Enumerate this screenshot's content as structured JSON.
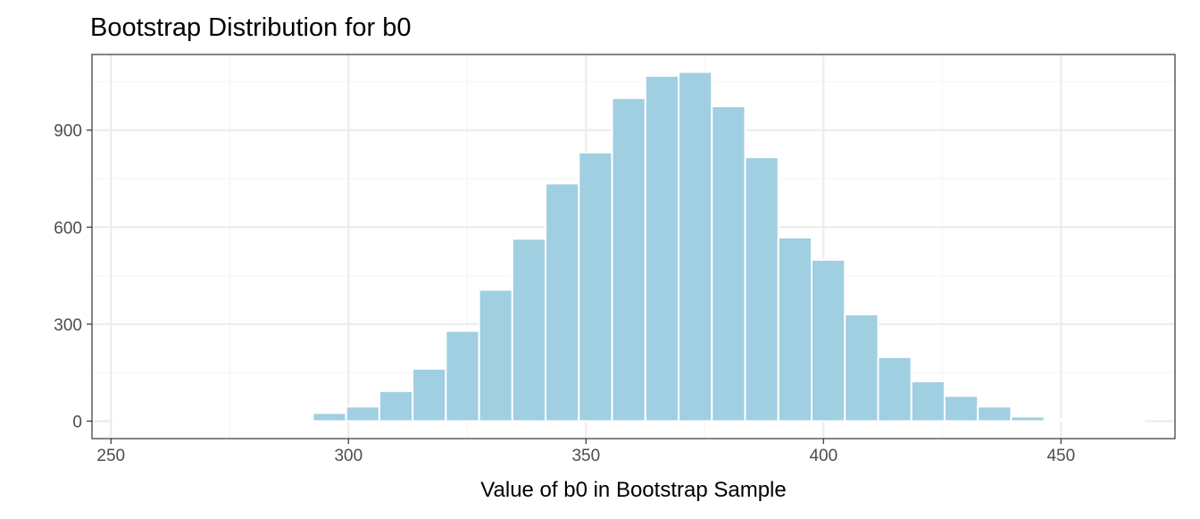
{
  "chart_data": {
    "type": "bar",
    "title": "Bootstrap Distribution for b0",
    "xlabel": "Value of b0 in Bootstrap Sample",
    "ylabel": "",
    "xlim": [
      246,
      474
    ],
    "ylim": [
      -54,
      1134
    ],
    "xticks": [
      250,
      300,
      350,
      400,
      450
    ],
    "yticks": [
      0,
      300,
      600,
      900
    ],
    "bin_width": 7,
    "bins": [
      {
        "start": 250.5,
        "end": 257.5,
        "count": 1
      },
      {
        "start": 257.5,
        "end": 264.5,
        "count": 0
      },
      {
        "start": 264.5,
        "end": 271.5,
        "count": 0
      },
      {
        "start": 271.5,
        "end": 278.5,
        "count": 0
      },
      {
        "start": 278.5,
        "end": 285.5,
        "count": 0
      },
      {
        "start": 285.5,
        "end": 292.5,
        "count": 3
      },
      {
        "start": 292.5,
        "end": 299.5,
        "count": 25
      },
      {
        "start": 299.5,
        "end": 306.5,
        "count": 45
      },
      {
        "start": 306.5,
        "end": 313.5,
        "count": 93
      },
      {
        "start": 313.5,
        "end": 320.5,
        "count": 162
      },
      {
        "start": 320.5,
        "end": 327.5,
        "count": 279
      },
      {
        "start": 327.5,
        "end": 334.5,
        "count": 406
      },
      {
        "start": 334.5,
        "end": 341.5,
        "count": 564
      },
      {
        "start": 341.5,
        "end": 348.5,
        "count": 735
      },
      {
        "start": 348.5,
        "end": 355.5,
        "count": 831
      },
      {
        "start": 355.5,
        "end": 362.5,
        "count": 999
      },
      {
        "start": 362.5,
        "end": 369.5,
        "count": 1068
      },
      {
        "start": 369.5,
        "end": 376.5,
        "count": 1080
      },
      {
        "start": 376.5,
        "end": 383.5,
        "count": 974
      },
      {
        "start": 383.5,
        "end": 390.5,
        "count": 816
      },
      {
        "start": 390.5,
        "end": 397.5,
        "count": 568
      },
      {
        "start": 397.5,
        "end": 404.5,
        "count": 499
      },
      {
        "start": 404.5,
        "end": 411.5,
        "count": 330
      },
      {
        "start": 411.5,
        "end": 418.5,
        "count": 198
      },
      {
        "start": 418.5,
        "end": 425.5,
        "count": 123
      },
      {
        "start": 425.5,
        "end": 432.5,
        "count": 78
      },
      {
        "start": 432.5,
        "end": 439.5,
        "count": 45
      },
      {
        "start": 439.5,
        "end": 446.5,
        "count": 14
      },
      {
        "start": 446.5,
        "end": 453.5,
        "count": 4
      },
      {
        "start": 453.5,
        "end": 460.5,
        "count": 0
      },
      {
        "start": 460.5,
        "end": 467.5,
        "count": 1
      }
    ],
    "colors": {
      "bar_fill": "#a0cfe1",
      "bar_outline": "#ffffff",
      "grid_major": "#ebebeb",
      "grid_minor": "#f4f4f4",
      "panel_border": "#333333",
      "tick_text": "#4d4d4d",
      "title_text": "#000000"
    },
    "grid": true,
    "legend": "none"
  }
}
